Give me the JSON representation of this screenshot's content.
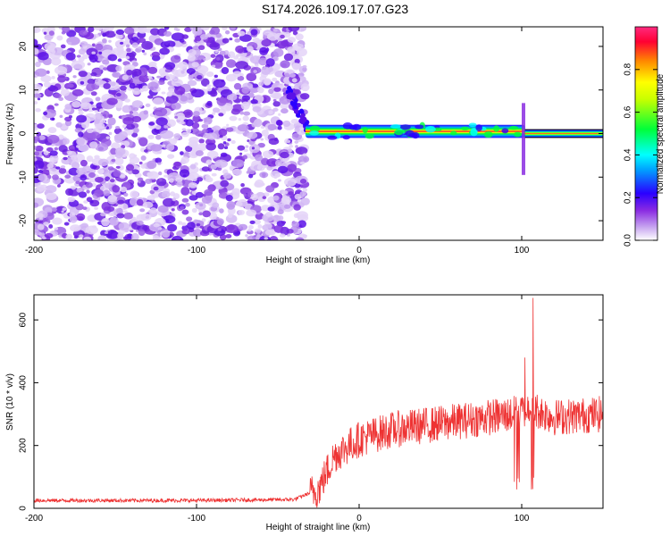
{
  "title": "S174.2026.109.17.07.G23",
  "chart_data": [
    {
      "type": "heatmap",
      "xlabel": "Height of straight line (km)",
      "ylabel": "Frequency (Hz)",
      "xlim": [
        -200,
        150
      ],
      "ylim": [
        -24.5,
        24.5
      ],
      "x_ticks": [
        -200,
        -100,
        0,
        100
      ],
      "y_ticks": [
        -20,
        -10,
        0,
        10,
        20
      ],
      "colorbar": {
        "label": "Normalized spectral amplitude",
        "range": [
          0,
          1
        ],
        "ticks": [
          0.0,
          0.2,
          0.4,
          0.6,
          0.8
        ],
        "tick_labels": [
          "0.0",
          "0.2",
          "0.4",
          "0.6",
          "0.8"
        ],
        "colors": [
          "#ffffff",
          "#8a2be2",
          "#2a00ff",
          "#00ffff",
          "#00ff3a",
          "#c8ff00",
          "#ffff00",
          "#ff8800",
          "#ff0033",
          "#ff2a7f"
        ]
      },
      "regions": [
        {
          "x_range": [
            -200,
            -33
          ],
          "description_level": 0.15,
          "f_range": [
            -24.5,
            24.5
          ]
        },
        {
          "x_range": [
            -33,
            102
          ],
          "band_center_hz": 0.5,
          "band_halfwidth_hz": 1.5,
          "peak_level": 0.95
        },
        {
          "x_range": [
            102,
            150
          ],
          "band_center_hz": 0.0,
          "band_halfwidth_hz": 0.8,
          "peak_level": 0.95
        }
      ]
    },
    {
      "type": "line",
      "xlabel": "Height of straight line (km)",
      "ylabel": "SNR (10 * v/v)",
      "xlim": [
        -200,
        150
      ],
      "ylim": [
        0,
        680
      ],
      "x_ticks": [
        -200,
        -100,
        0,
        100
      ],
      "y_ticks": [
        0,
        200,
        400,
        600
      ],
      "series_color": "#ee3333",
      "envelope": [
        {
          "x": -200,
          "y": 25
        },
        {
          "x": -100,
          "y": 25
        },
        {
          "x": -40,
          "y": 28
        },
        {
          "x": -25,
          "y": 60
        },
        {
          "x": -15,
          "y": 170
        },
        {
          "x": 0,
          "y": 220
        },
        {
          "x": 20,
          "y": 250
        },
        {
          "x": 50,
          "y": 270
        },
        {
          "x": 80,
          "y": 290
        },
        {
          "x": 95,
          "y": 300
        },
        {
          "x": 105,
          "y": 320
        },
        {
          "x": 120,
          "y": 290
        },
        {
          "x": 150,
          "y": 300
        }
      ],
      "features": [
        {
          "x": 107,
          "y": 670
        },
        {
          "x": 102,
          "y": 480
        },
        {
          "x": 97,
          "y": 60
        },
        {
          "x": 106,
          "y": 60
        }
      ]
    }
  ]
}
